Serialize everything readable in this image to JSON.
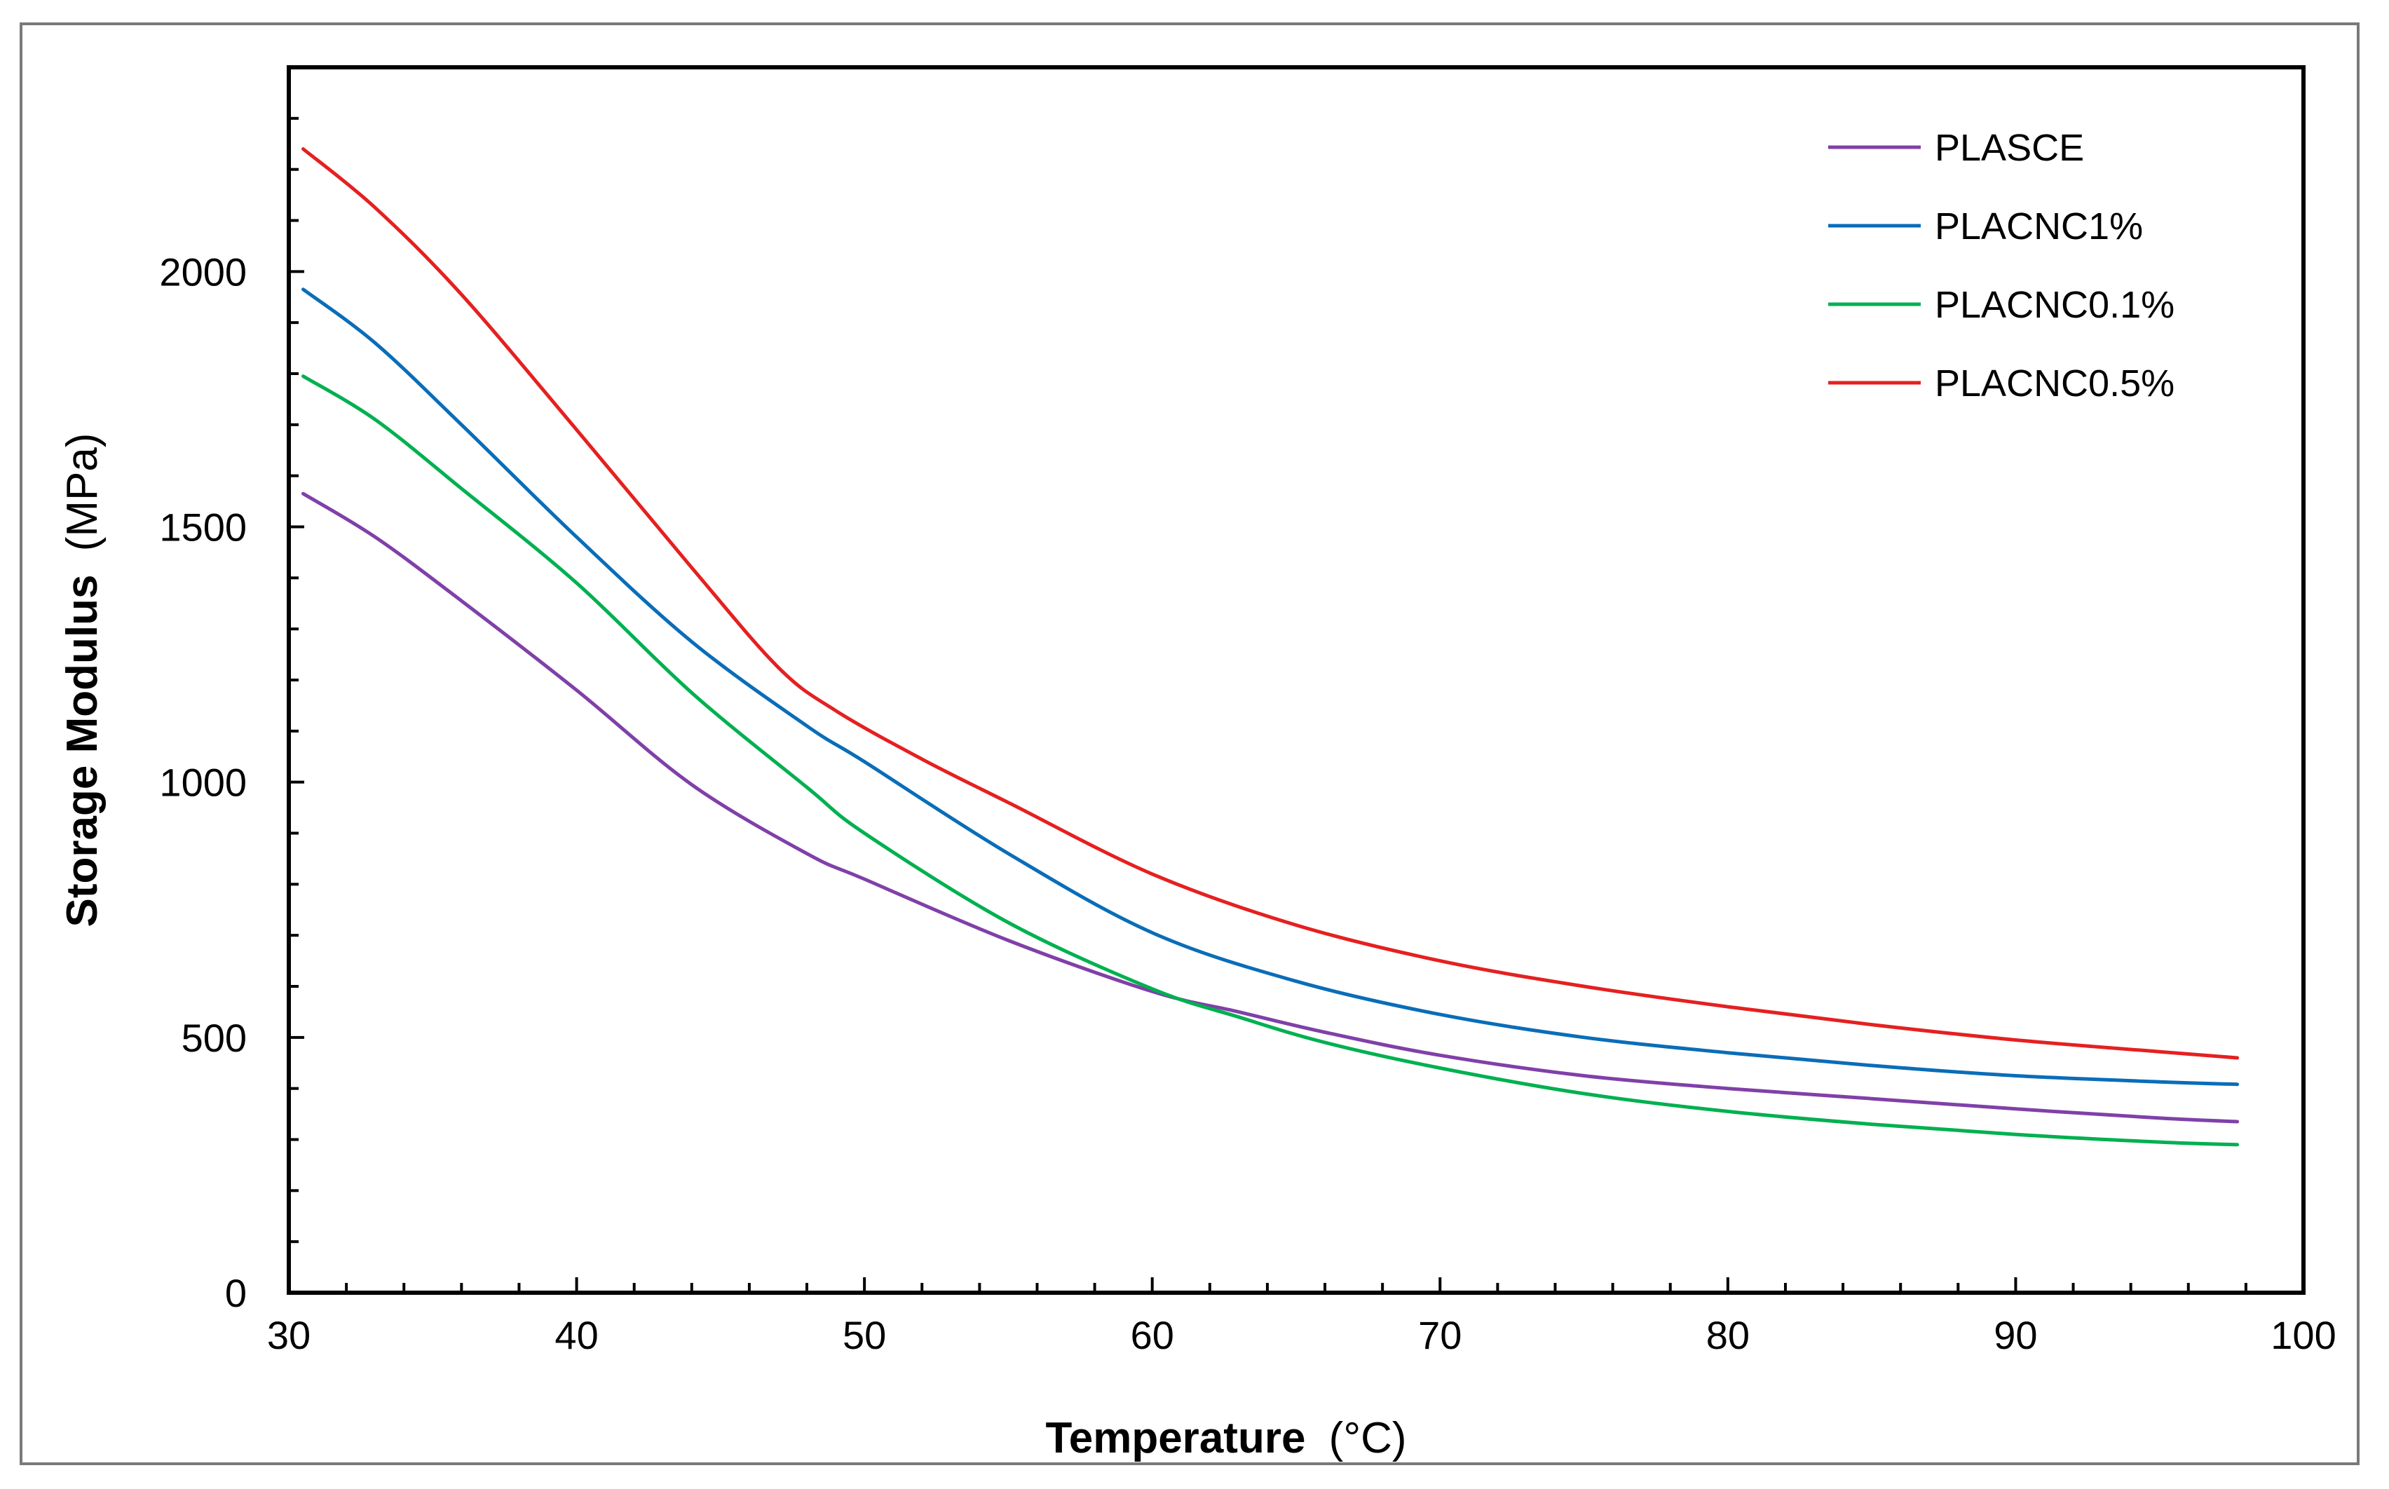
{
  "chart_data": {
    "type": "line",
    "title": "",
    "xlabel": "Temperature",
    "xlabel_unit": "(°C)",
    "ylabel": "Storage Modulus",
    "ylabel_unit": "(MPa)",
    "xlim": [
      30,
      100
    ],
    "ylim": [
      0,
      2400
    ],
    "xticks": [
      30,
      40,
      50,
      60,
      70,
      80,
      90,
      100
    ],
    "xtick_labels": [
      "30",
      "40",
      "50",
      "60",
      "70",
      "80",
      "90",
      "100"
    ],
    "yticks": [
      0,
      500,
      1000,
      1500,
      2000
    ],
    "ytick_labels": [
      "0",
      "500",
      "1000",
      "1500",
      "2000"
    ],
    "grid": false,
    "legend_position": "top-right",
    "series": [
      {
        "name": "PLASCE",
        "color": "#8040a8",
        "x": [
          30.5,
          33,
          36,
          40,
          44,
          48,
          50,
          55,
          60,
          63,
          66,
          70,
          75,
          80,
          85,
          90,
          95,
          97.7
        ],
        "y": [
          1565,
          1480,
          1355,
          1180,
          995,
          860,
          810,
          690,
          590,
          550,
          510,
          465,
          425,
          400,
          380,
          360,
          342,
          335
        ]
      },
      {
        "name": "PLACNC1%",
        "color": "#0a6db8",
        "x": [
          30.5,
          33,
          36,
          40,
          44,
          48,
          50,
          55,
          60,
          65,
          70,
          75,
          80,
          85,
          90,
          95,
          97.7
        ],
        "y": [
          1965,
          1860,
          1700,
          1480,
          1275,
          1110,
          1040,
          860,
          705,
          610,
          545,
          500,
          470,
          445,
          425,
          413,
          408
        ]
      },
      {
        "name": "PLACNC0.1%",
        "color": "#00b050",
        "x": [
          30.5,
          33,
          36,
          40,
          44,
          48,
          50,
          55,
          60,
          63,
          66,
          70,
          75,
          80,
          85,
          90,
          95,
          97.7
        ],
        "y": [
          1795,
          1710,
          1575,
          1390,
          1175,
          990,
          900,
          725,
          595,
          540,
          490,
          440,
          390,
          355,
          330,
          310,
          295,
          290
        ]
      },
      {
        "name": "PLACNC0.5%",
        "color": "#e52020",
        "x": [
          30.5,
          33,
          36,
          40,
          44,
          47,
          49,
          52,
          55,
          60,
          65,
          70,
          75,
          80,
          85,
          90,
          95,
          97.7
        ],
        "y": [
          2240,
          2125,
          1955,
          1690,
          1420,
          1225,
          1140,
          1045,
          960,
          820,
          720,
          650,
          600,
          560,
          525,
          495,
          472,
          460
        ]
      }
    ]
  }
}
